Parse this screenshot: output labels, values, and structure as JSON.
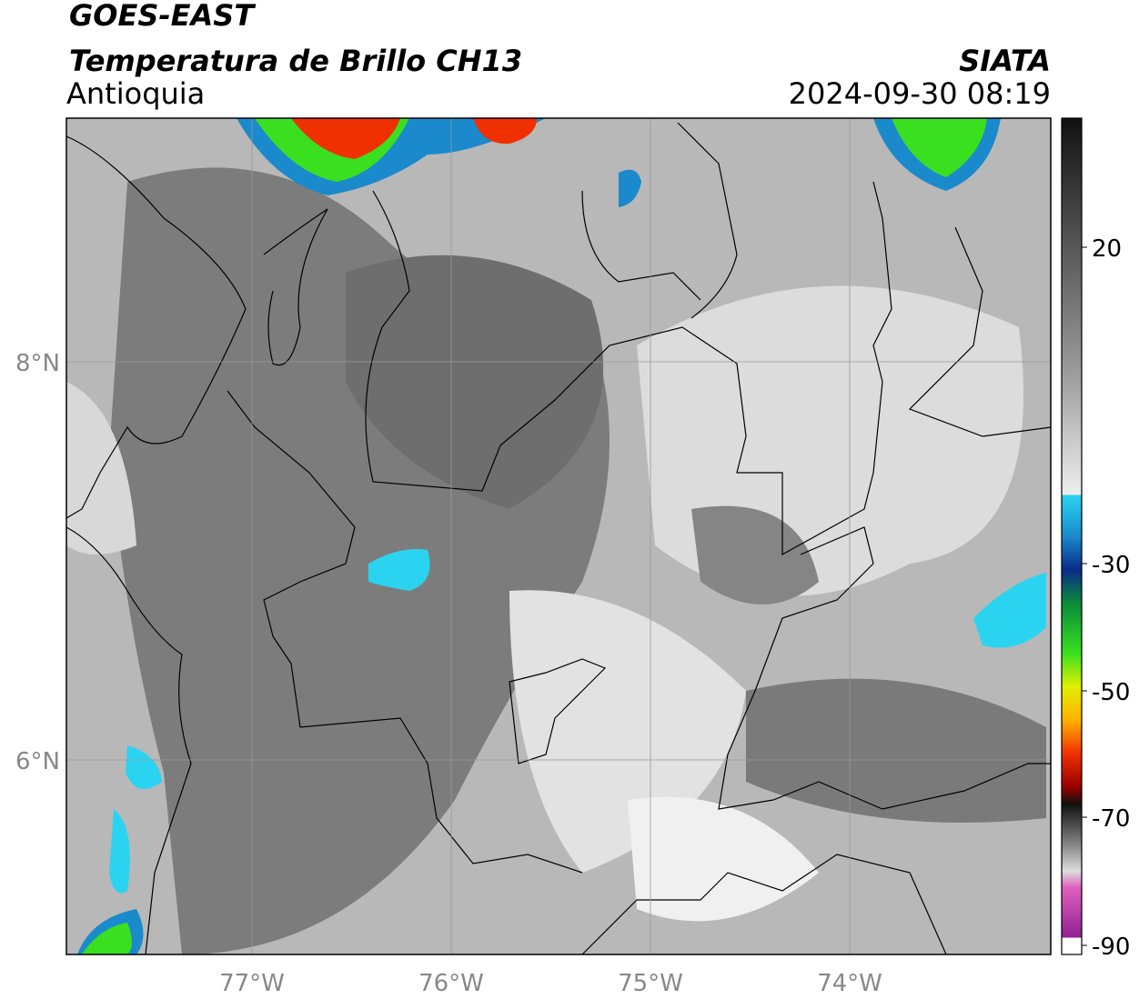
{
  "header": {
    "satellite": "GOES-EAST",
    "product": "Temperatura de Brillo CH13",
    "region": "Antioquia",
    "source": "SIATA",
    "datetime": "2024-09-30 08:19"
  },
  "map": {
    "lon_labels": [
      "77°W",
      "76°W",
      "75°W",
      "74°W"
    ],
    "lat_labels": [
      "8°N",
      "6°N"
    ]
  },
  "colorbar": {
    "tick_labels": [
      "20",
      "-30",
      "-50",
      "-70",
      "-90"
    ]
  }
}
